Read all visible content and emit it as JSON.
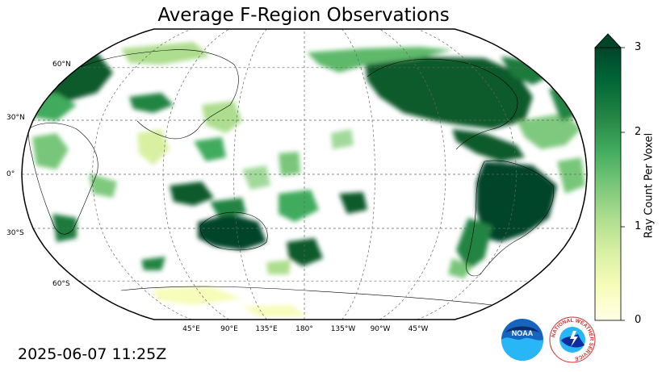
{
  "title": "Average F-Region Observations",
  "timestamp": "2025-06-07 11:25Z",
  "lat_labels": [
    "60°N",
    "30°N",
    "0°",
    "30°S",
    "60°S"
  ],
  "lon_labels": [
    "45°E",
    "90°E",
    "135°E",
    "180°",
    "135°W",
    "90°W",
    "45°W"
  ],
  "colorbar": {
    "label": "Ray Count Per Voxel",
    "ticks": [
      "0",
      "1",
      "2",
      "3"
    ],
    "min": 0,
    "max": 3,
    "extend": "max",
    "colormap": "YlGn",
    "low_color": "#ffffe5",
    "high_color": "#004529"
  },
  "logos": {
    "noaa_text": "NOAA",
    "nws_ring_text": "NATIONAL WEATHER SERVICE"
  },
  "map": {
    "projection": "Robinson",
    "central_longitude": 180,
    "gridlines": "dashed gray, every 45° longitude and 30° latitude",
    "colors": {
      "outline": "#000000",
      "grid": "#666666",
      "coast": "#000000"
    }
  }
}
